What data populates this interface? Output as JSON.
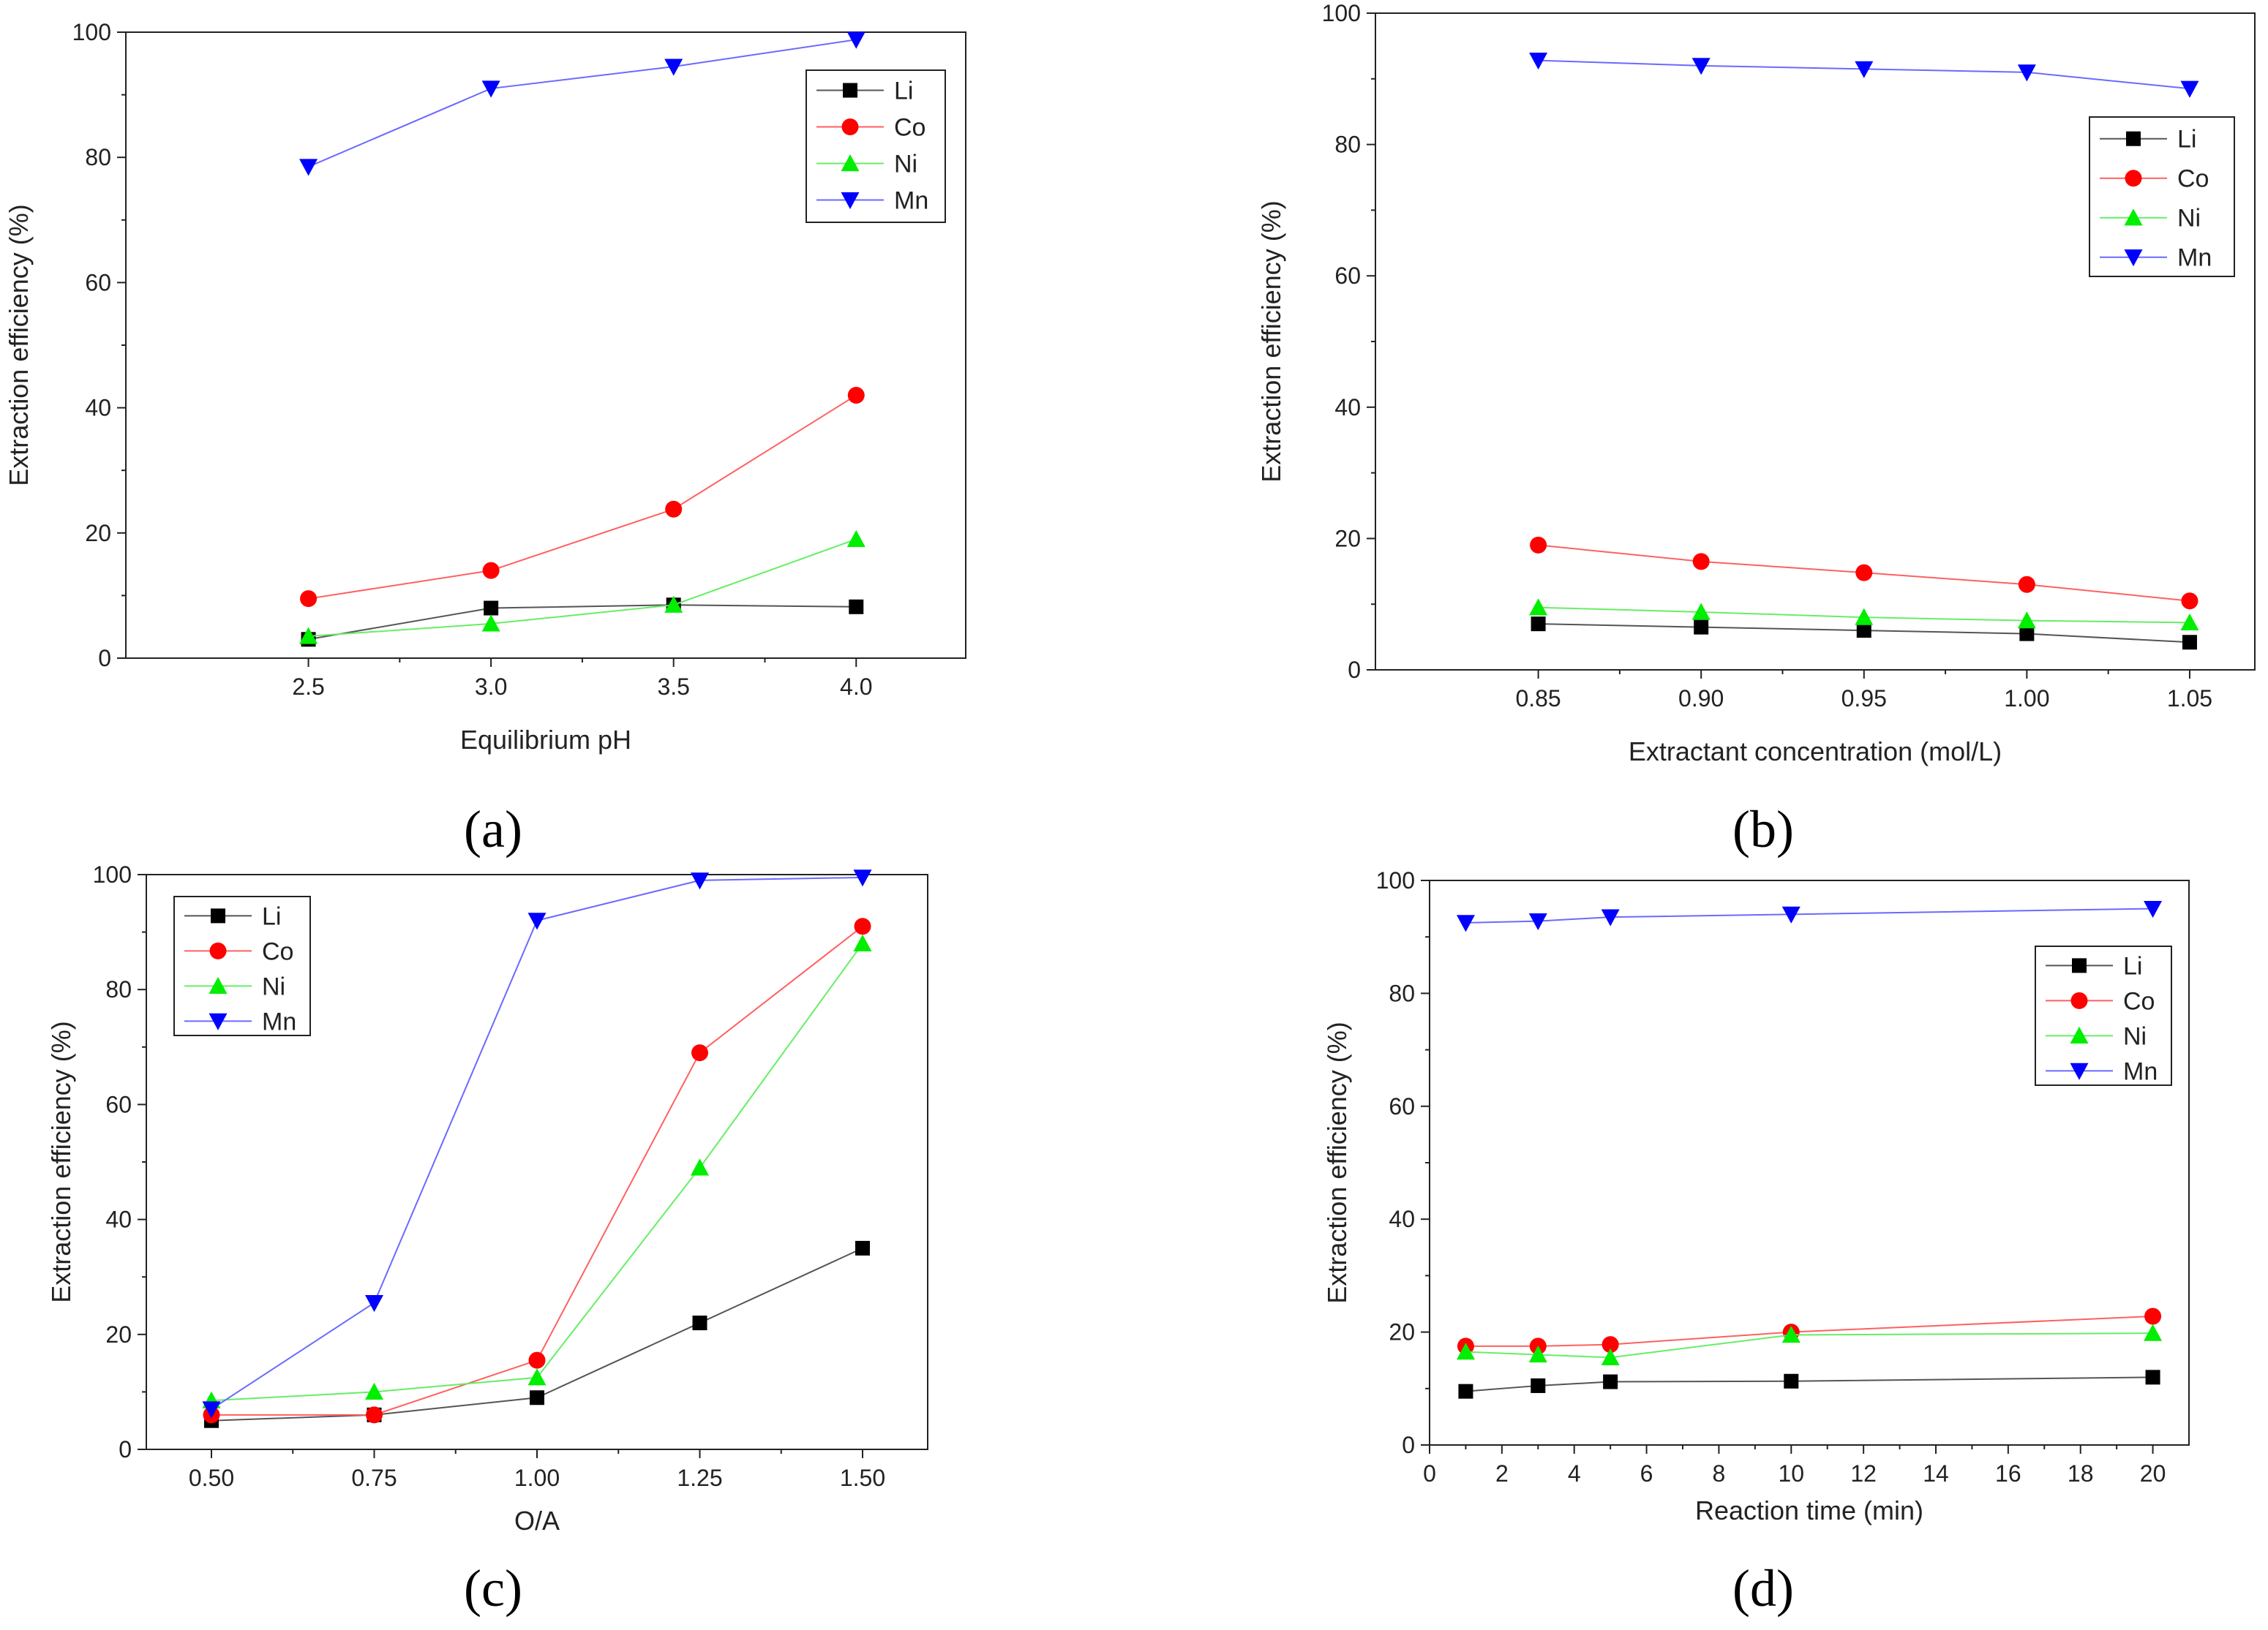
{
  "chart_data": [
    {
      "type": "line",
      "panel_label": "(a)",
      "title": "",
      "xlabel": "Equilibrium pH",
      "ylabel": "Extraction efficiency (%)",
      "xlim": [
        2.0,
        4.3
      ],
      "ylim": [
        0,
        100
      ],
      "xticks": [
        2.5,
        3.0,
        3.5,
        4.0
      ],
      "xtick_labels": [
        "2.5",
        "3.0",
        "3.5",
        "4.0"
      ],
      "yticks": [
        0,
        20,
        40,
        60,
        80,
        100
      ],
      "ytick_labels": [
        "0",
        "20",
        "40",
        "60",
        "80",
        "100"
      ],
      "legend_position": "top-right",
      "x": [
        2.5,
        3.0,
        3.5,
        4.0
      ],
      "series": [
        {
          "name": "Li",
          "values": [
            3.0,
            8.0,
            8.5,
            8.2
          ]
        },
        {
          "name": "Co",
          "values": [
            9.5,
            14.0,
            23.8,
            42.0
          ]
        },
        {
          "name": "Ni",
          "values": [
            3.5,
            5.5,
            8.5,
            19.0
          ]
        },
        {
          "name": "Mn",
          "values": [
            78.5,
            91.0,
            94.5,
            98.8
          ]
        }
      ]
    },
    {
      "type": "line",
      "panel_label": "(b)",
      "title": "",
      "xlabel": "Extractant concentration (mol/L)",
      "ylabel": "Extraction efficiency (%)",
      "xlim": [
        0.8,
        1.07
      ],
      "ylim": [
        0,
        100
      ],
      "xticks": [
        0.85,
        0.9,
        0.95,
        1.0,
        1.05
      ],
      "xtick_labels": [
        "0.85",
        "0.90",
        "0.95",
        "1.00",
        "1.05"
      ],
      "yticks": [
        0,
        20,
        40,
        60,
        80,
        100
      ],
      "ytick_labels": [
        "0",
        "20",
        "40",
        "60",
        "80",
        "100"
      ],
      "legend_position": "top-right",
      "x": [
        0.85,
        0.9,
        0.95,
        1.0,
        1.05
      ],
      "series": [
        {
          "name": "Li",
          "values": [
            7.0,
            6.5,
            6.0,
            5.5,
            4.2
          ]
        },
        {
          "name": "Co",
          "values": [
            19.0,
            16.5,
            14.8,
            13.0,
            10.5
          ]
        },
        {
          "name": "Ni",
          "values": [
            9.5,
            8.8,
            8.0,
            7.5,
            7.2
          ]
        },
        {
          "name": "Mn",
          "values": [
            92.8,
            92.0,
            91.5,
            91.0,
            88.5
          ]
        }
      ]
    },
    {
      "type": "line",
      "panel_label": "(c)",
      "title": "",
      "xlabel": "O/A",
      "ylabel": "Extraction efficiency (%)",
      "xlim": [
        0.4,
        1.6
      ],
      "ylim": [
        0,
        100
      ],
      "xticks": [
        0.5,
        0.75,
        1.0,
        1.25,
        1.5
      ],
      "xtick_labels": [
        "0.50",
        "0.75",
        "1.00",
        "1.25",
        "1.50"
      ],
      "yticks": [
        0,
        20,
        40,
        60,
        80,
        100
      ],
      "ytick_labels": [
        "0",
        "20",
        "40",
        "60",
        "80",
        "100"
      ],
      "legend_position": "top-left",
      "x": [
        0.5,
        0.75,
        1.0,
        1.25,
        1.5
      ],
      "series": [
        {
          "name": "Li",
          "values": [
            5.0,
            6.0,
            9.0,
            22.0,
            35.0
          ]
        },
        {
          "name": "Co",
          "values": [
            6.0,
            6.0,
            15.5,
            69.0,
            91.0
          ]
        },
        {
          "name": "Ni",
          "values": [
            8.5,
            10.0,
            12.5,
            49.0,
            88.0
          ]
        },
        {
          "name": "Mn",
          "values": [
            7.0,
            25.5,
            92.0,
            99.0,
            99.5
          ]
        }
      ]
    },
    {
      "type": "line",
      "panel_label": "(d)",
      "title": "",
      "xlabel": "Reaction time (min)",
      "ylabel": "Extraction efficiency (%)",
      "xlim": [
        0,
        21
      ],
      "ylim": [
        0,
        100
      ],
      "xticks": [
        0,
        2,
        4,
        6,
        8,
        10,
        12,
        14,
        16,
        18,
        20
      ],
      "xtick_labels": [
        "0",
        "2",
        "4",
        "6",
        "8",
        "10",
        "12",
        "14",
        "16",
        "18",
        "20"
      ],
      "yticks": [
        0,
        20,
        40,
        60,
        80,
        100
      ],
      "ytick_labels": [
        "0",
        "20",
        "40",
        "60",
        "80",
        "100"
      ],
      "legend_position": "right",
      "x": [
        1,
        3,
        5,
        10,
        20
      ],
      "series": [
        {
          "name": "Li",
          "values": [
            9.5,
            10.5,
            11.2,
            11.3,
            12.0
          ]
        },
        {
          "name": "Co",
          "values": [
            17.5,
            17.5,
            17.8,
            20.0,
            22.8
          ]
        },
        {
          "name": "Ni",
          "values": [
            16.5,
            16.0,
            15.5,
            19.5,
            19.8
          ]
        },
        {
          "name": "Mn",
          "values": [
            92.5,
            92.8,
            93.5,
            94.0,
            95.0
          ]
        }
      ]
    }
  ],
  "series_colors": {
    "Li": "#000000",
    "Co": "#ff0000",
    "Ni": "#00ee00",
    "Mn": "#0000ff"
  },
  "series_line_colors": {
    "Li": "#555555",
    "Co": "#ff6060",
    "Ni": "#66ee66",
    "Mn": "#6a6aff"
  },
  "series_markers": {
    "Li": "square",
    "Co": "circle",
    "Ni": "triangle-up",
    "Mn": "triangle-down"
  }
}
